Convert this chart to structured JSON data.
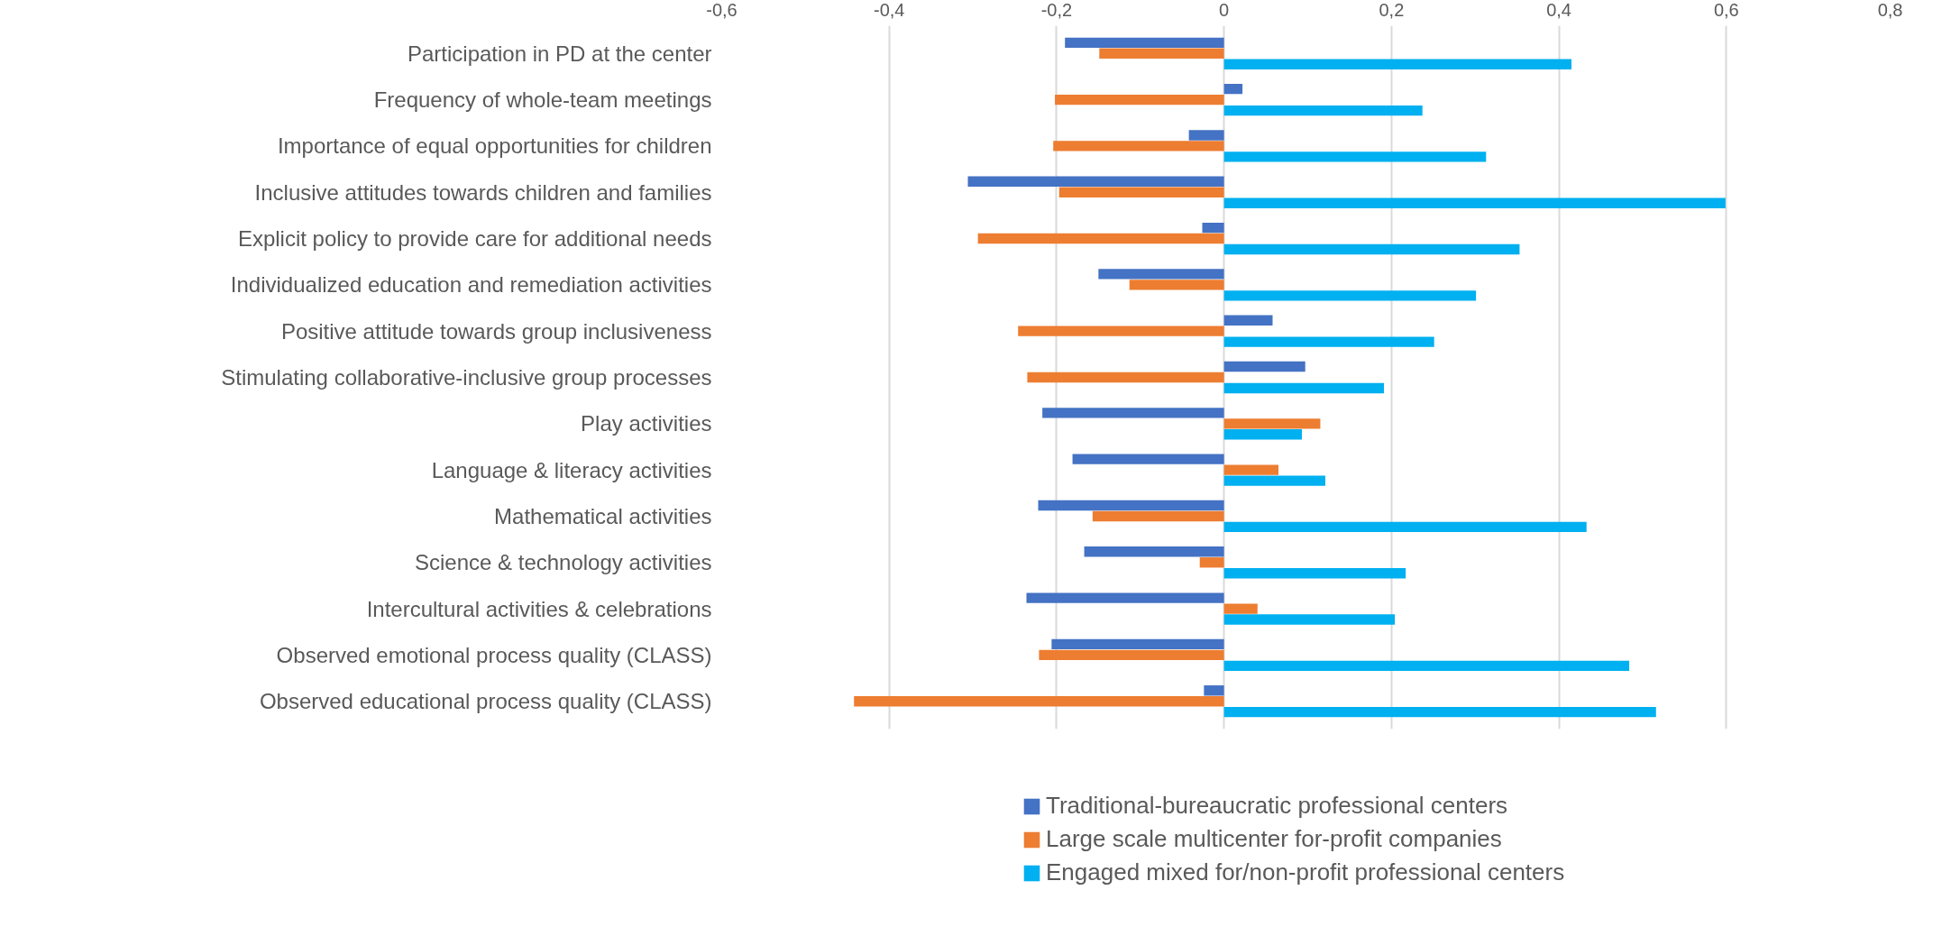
{
  "chart_data": {
    "type": "bar",
    "orientation": "horizontal",
    "categories": [
      "Participation in PD at the center",
      "Frequency of whole-team meetings",
      "Importance of equal opportunities for children",
      "Inclusive attitudes towards children and families",
      "Explicit policy to provide care for additional needs",
      "Individualized education and remediation activities",
      "Positive attitude towards group inclusiveness",
      "Stimulating collaborative-inclusive group processes",
      "Play activities",
      "Language & literacy activities",
      "Mathematical activities",
      "Science & technology activities",
      "Intercultural activities & celebrations",
      "Observed emotional process quality (CLASS)",
      "Observed educational process quality (CLASS)"
    ],
    "series": [
      {
        "name": "Traditional-bureaucratic professional centers",
        "color": "#4472c4",
        "values": [
          -0.19,
          0.022,
          -0.042,
          -0.306,
          -0.026,
          -0.15,
          0.058,
          0.097,
          -0.217,
          -0.181,
          -0.222,
          -0.167,
          -0.236,
          -0.206,
          -0.024
        ]
      },
      {
        "name": "Large scale multicenter for-profit companies",
        "color": "#ed7d31",
        "values": [
          -0.149,
          -0.202,
          -0.204,
          -0.197,
          -0.294,
          -0.113,
          -0.246,
          -0.235,
          0.115,
          0.065,
          -0.157,
          -0.029,
          0.04,
          -0.221,
          -0.442
        ]
      },
      {
        "name": "Engaged mixed for/non-profit professional centers",
        "color": "#00b0f0",
        "values": [
          0.415,
          0.237,
          0.313,
          0.599,
          0.353,
          0.301,
          0.251,
          0.191,
          0.093,
          0.121,
          0.433,
          0.217,
          0.204,
          0.484,
          0.516
        ]
      }
    ],
    "xlim": [
      -0.6,
      0.8
    ],
    "xticks": [
      {
        "value": -0.6,
        "label": "-0,6"
      },
      {
        "value": -0.4,
        "label": "-0,4"
      },
      {
        "value": -0.2,
        "label": "-0,2"
      },
      0,
      {
        "value": 0.2,
        "label": "0,2"
      },
      {
        "value": 0.4,
        "label": "0,4"
      },
      {
        "value": 0.6,
        "label": "0,6"
      },
      {
        "value": 0.8,
        "label": "0,8"
      }
    ],
    "grid": "x",
    "legend": "bottom"
  }
}
